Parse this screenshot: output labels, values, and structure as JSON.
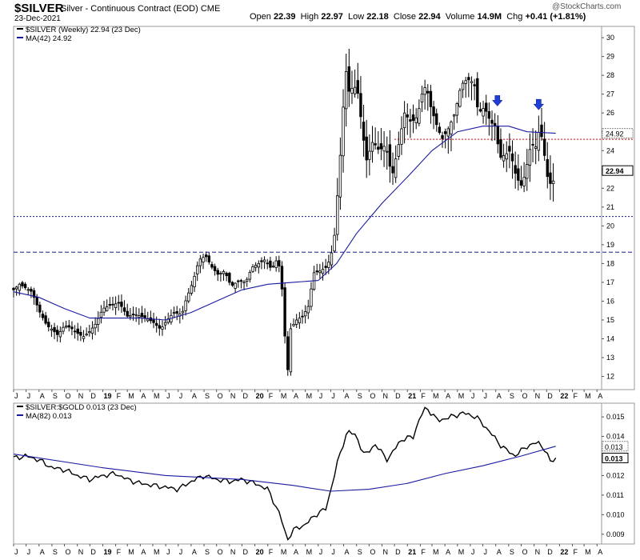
{
  "header": {
    "symbol": "$SILVER",
    "description": "Silver - Continuous Contract (EOD)",
    "exchange": "CME",
    "date": "23-Dec-2021",
    "brand": "@StockCharts.com",
    "open_label": "Open",
    "open": "22.39",
    "high_label": "High",
    "high": "22.97",
    "low_label": "Low",
    "low": "22.18",
    "close_label": "Close",
    "close": "22.94",
    "volume_label": "Volume",
    "volume": "14.9M",
    "chg_label": "Chg",
    "chg": "+0.41 (+1.81%)"
  },
  "colors": {
    "price": "#000000",
    "ma": "#1a1aa0",
    "resistance": "#cc0000",
    "support": "#1a1aa0",
    "arrow": "#1f3fd8"
  },
  "chart_data": [
    {
      "type": "candlestick",
      "legend": [
        "$SILVER (Weekly) 22.94 (23 Dec)",
        "MA(42) 24.92"
      ],
      "frequency": "weekly",
      "x_range": [
        "2018-06",
        "2022-04"
      ],
      "ylim": [
        11.3,
        30.6
      ],
      "y_ticks": [
        12,
        13,
        14,
        15,
        16,
        17,
        18,
        19,
        20,
        21,
        22,
        23,
        24,
        25,
        26,
        27,
        28,
        29,
        30
      ],
      "x_ticks": [
        "J",
        "J",
        "A",
        "S",
        "O",
        "N",
        "D",
        "19",
        "F",
        "M",
        "A",
        "M",
        "J",
        "J",
        "A",
        "S",
        "O",
        "N",
        "D",
        "20",
        "F",
        "M",
        "A",
        "M",
        "J",
        "J",
        "A",
        "S",
        "O",
        "N",
        "D",
        "21",
        "F",
        "M",
        "A",
        "M",
        "J",
        "J",
        "A",
        "S",
        "O",
        "N",
        "D",
        "22",
        "F",
        "M",
        "A"
      ],
      "price_path": [
        [
          "2018-06-01",
          16.6
        ],
        [
          "2018-06-15",
          16.9
        ],
        [
          "2018-07-15",
          16.5
        ],
        [
          "2018-08-01",
          15.5
        ],
        [
          "2018-08-20",
          14.7
        ],
        [
          "2018-09-01",
          14.5
        ],
        [
          "2018-09-15",
          14.2
        ],
        [
          "2018-10-01",
          14.7
        ],
        [
          "2018-10-15",
          14.6
        ],
        [
          "2018-11-01",
          14.3
        ],
        [
          "2018-11-15",
          14.1
        ],
        [
          "2018-12-01",
          14.4
        ],
        [
          "2018-12-15",
          14.8
        ],
        [
          "2019-01-01",
          15.6
        ],
        [
          "2019-01-20",
          15.8
        ],
        [
          "2019-02-10",
          15.9
        ],
        [
          "2019-03-01",
          15.2
        ],
        [
          "2019-03-20",
          15.3
        ],
        [
          "2019-04-15",
          15.1
        ],
        [
          "2019-05-01",
          14.9
        ],
        [
          "2019-05-20",
          14.5
        ],
        [
          "2019-06-01",
          14.9
        ],
        [
          "2019-06-20",
          15.4
        ],
        [
          "2019-07-10",
          15.3
        ],
        [
          "2019-07-20",
          16.1
        ],
        [
          "2019-08-05",
          17.0
        ],
        [
          "2019-08-20",
          18.2
        ],
        [
          "2019-09-05",
          18.4
        ],
        [
          "2019-09-20",
          17.8
        ],
        [
          "2019-10-05",
          17.4
        ],
        [
          "2019-10-20",
          17.6
        ],
        [
          "2019-11-05",
          16.8
        ],
        [
          "2019-11-25",
          17.1
        ],
        [
          "2019-12-10",
          17.0
        ],
        [
          "2019-12-25",
          17.8
        ],
        [
          "2020-01-10",
          18.0
        ],
        [
          "2020-01-25",
          18.2
        ],
        [
          "2020-02-10",
          17.7
        ],
        [
          "2020-02-25",
          18.3
        ],
        [
          "2020-03-05",
          17.0
        ],
        [
          "2020-03-12",
          14.5
        ],
        [
          "2020-03-19",
          12.0
        ],
        [
          "2020-03-26",
          14.5
        ],
        [
          "2020-04-10",
          15.0
        ],
        [
          "2020-04-25",
          15.2
        ],
        [
          "2020-05-10",
          15.8
        ],
        [
          "2020-05-20",
          17.5
        ],
        [
          "2020-06-05",
          17.6
        ],
        [
          "2020-06-20",
          17.8
        ],
        [
          "2020-07-01",
          18.3
        ],
        [
          "2020-07-10",
          19.5
        ],
        [
          "2020-07-20",
          22.5
        ],
        [
          "2020-07-28",
          25.0
        ],
        [
          "2020-08-05",
          28.5
        ],
        [
          "2020-08-15",
          27.0
        ],
        [
          "2020-08-25",
          27.5
        ],
        [
          "2020-09-05",
          27.0
        ],
        [
          "2020-09-15",
          25.0
        ],
        [
          "2020-09-25",
          23.5
        ],
        [
          "2020-10-10",
          24.5
        ],
        [
          "2020-10-25",
          24.0
        ],
        [
          "2020-11-10",
          24.3
        ],
        [
          "2020-11-25",
          22.6
        ],
        [
          "2020-12-10",
          24.2
        ],
        [
          "2020-12-25",
          26.0
        ],
        [
          "2021-01-10",
          25.5
        ],
        [
          "2021-01-25",
          25.8
        ],
        [
          "2021-02-05",
          27.0
        ],
        [
          "2021-02-15",
          27.5
        ],
        [
          "2021-02-25",
          26.4
        ],
        [
          "2021-03-10",
          25.5
        ],
        [
          "2021-03-25",
          24.6
        ],
        [
          "2021-04-10",
          25.2
        ],
        [
          "2021-04-25",
          26.0
        ],
        [
          "2021-05-10",
          27.5
        ],
        [
          "2021-05-25",
          27.8
        ],
        [
          "2021-06-10",
          27.6
        ],
        [
          "2021-06-20",
          26.0
        ],
        [
          "2021-07-05",
          26.3
        ],
        [
          "2021-07-20",
          25.5
        ],
        [
          "2021-08-01",
          25.3
        ],
        [
          "2021-08-10",
          23.6
        ],
        [
          "2021-08-25",
          23.8
        ],
        [
          "2021-09-05",
          24.0
        ],
        [
          "2021-09-15",
          22.9
        ],
        [
          "2021-09-30",
          22.1
        ],
        [
          "2021-10-10",
          22.7
        ],
        [
          "2021-10-25",
          24.4
        ],
        [
          "2021-11-05",
          24.2
        ],
        [
          "2021-11-15",
          25.3
        ],
        [
          "2021-11-25",
          23.9
        ],
        [
          "2021-12-05",
          22.3
        ],
        [
          "2021-12-15",
          22.2
        ],
        [
          "2021-12-23",
          22.94
        ]
      ],
      "ma_path": [
        [
          "2018-06-01",
          16.5
        ],
        [
          "2018-08-01",
          16.2
        ],
        [
          "2018-10-01",
          15.6
        ],
        [
          "2018-12-01",
          15.1
        ],
        [
          "2019-02-01",
          15.1
        ],
        [
          "2019-04-01",
          15.1
        ],
        [
          "2019-06-01",
          15.0
        ],
        [
          "2019-08-01",
          15.4
        ],
        [
          "2019-10-01",
          16.0
        ],
        [
          "2019-12-01",
          16.6
        ],
        [
          "2020-02-01",
          16.9
        ],
        [
          "2020-04-01",
          17.0
        ],
        [
          "2020-06-01",
          17.1
        ],
        [
          "2020-07-15",
          18.0
        ],
        [
          "2020-09-01",
          19.6
        ],
        [
          "2020-11-01",
          21.2
        ],
        [
          "2021-01-01",
          22.6
        ],
        [
          "2021-03-01",
          24.0
        ],
        [
          "2021-05-01",
          25.0
        ],
        [
          "2021-07-01",
          25.3
        ],
        [
          "2021-09-01",
          25.3
        ],
        [
          "2021-10-15",
          25.0
        ],
        [
          "2021-12-23",
          24.92
        ]
      ],
      "horizontal_lines": [
        {
          "y": 24.6,
          "style": "dotted",
          "color": "#cc0000",
          "from": "2020-12-01"
        },
        {
          "y": 20.5,
          "style": "dotted",
          "color": "#1a1aa0",
          "from": "2018-06-01"
        },
        {
          "y": 18.6,
          "style": "dashed",
          "color": "#1a1aa0",
          "from": "2018-06-01"
        }
      ],
      "arrows": [
        {
          "x": "2021-08-05",
          "y": 26.5
        },
        {
          "x": "2021-11-12",
          "y": 26.3
        }
      ],
      "last_value_labels": [
        {
          "text": "24.92",
          "y": 24.92,
          "style": "dotted"
        },
        {
          "text": "22.94",
          "y": 22.94,
          "style": "bold"
        }
      ]
    },
    {
      "type": "line",
      "legend": [
        "$SILVER:$GOLD 0.013 (23 Dec)",
        "MA(82) 0.013"
      ],
      "ylim": [
        0.0085,
        0.0157
      ],
      "y_ticks": [
        {
          "v": 0.009,
          "label": "0.009"
        },
        {
          "v": 0.01,
          "label": "0.010"
        },
        {
          "v": 0.011,
          "label": "0.011"
        },
        {
          "v": 0.012,
          "label": "0.012"
        },
        {
          "v": 0.014,
          "label": "0.014"
        },
        {
          "v": 0.015,
          "label": "0.015"
        }
      ],
      "ratio_path": [
        [
          "2018-06-01",
          0.0129
        ],
        [
          "2018-07-01",
          0.013
        ],
        [
          "2018-08-01",
          0.0128
        ],
        [
          "2018-09-01",
          0.0124
        ],
        [
          "2018-10-01",
          0.0123
        ],
        [
          "2018-11-01",
          0.012
        ],
        [
          "2018-12-01",
          0.0118
        ],
        [
          "2019-01-01",
          0.012
        ],
        [
          "2019-02-01",
          0.0121
        ],
        [
          "2019-03-01",
          0.0118
        ],
        [
          "2019-04-01",
          0.0116
        ],
        [
          "2019-05-01",
          0.0115
        ],
        [
          "2019-06-01",
          0.0114
        ],
        [
          "2019-07-01",
          0.0113
        ],
        [
          "2019-08-01",
          0.0117
        ],
        [
          "2019-09-01",
          0.012
        ],
        [
          "2019-10-01",
          0.0118
        ],
        [
          "2019-11-01",
          0.0117
        ],
        [
          "2019-12-01",
          0.0118
        ],
        [
          "2020-01-01",
          0.0116
        ],
        [
          "2020-02-01",
          0.0113
        ],
        [
          "2020-03-01",
          0.01
        ],
        [
          "2020-03-19",
          0.0087
        ],
        [
          "2020-04-01",
          0.0092
        ],
        [
          "2020-05-01",
          0.0095
        ],
        [
          "2020-06-01",
          0.0101
        ],
        [
          "2020-06-20",
          0.0103
        ],
        [
          "2020-07-15",
          0.0125
        ],
        [
          "2020-08-10",
          0.0143
        ],
        [
          "2020-09-01",
          0.014
        ],
        [
          "2020-09-20",
          0.013
        ],
        [
          "2020-10-15",
          0.0136
        ],
        [
          "2020-11-15",
          0.0128
        ],
        [
          "2020-12-15",
          0.0138
        ],
        [
          "2021-01-15",
          0.014
        ],
        [
          "2021-02-01",
          0.015
        ],
        [
          "2021-02-15",
          0.0155
        ],
        [
          "2021-03-15",
          0.0148
        ],
        [
          "2021-04-15",
          0.015
        ],
        [
          "2021-05-15",
          0.0152
        ],
        [
          "2021-06-15",
          0.015
        ],
        [
          "2021-07-15",
          0.0143
        ],
        [
          "2021-08-15",
          0.0135
        ],
        [
          "2021-09-15",
          0.013
        ],
        [
          "2021-10-15",
          0.0135
        ],
        [
          "2021-11-10",
          0.0137
        ],
        [
          "2021-11-25",
          0.0134
        ],
        [
          "2021-12-10",
          0.0127
        ],
        [
          "2021-12-23",
          0.0129
        ]
      ],
      "ma_path": [
        [
          "2018-06-01",
          0.0131
        ],
        [
          "2019-01-01",
          0.0124
        ],
        [
          "2019-06-01",
          0.012
        ],
        [
          "2019-12-01",
          0.0118
        ],
        [
          "2020-04-01",
          0.0115
        ],
        [
          "2020-07-01",
          0.0112
        ],
        [
          "2020-10-01",
          0.0113
        ],
        [
          "2021-01-01",
          0.0116
        ],
        [
          "2021-04-01",
          0.0121
        ],
        [
          "2021-07-01",
          0.0125
        ],
        [
          "2021-10-01",
          0.013
        ],
        [
          "2021-12-23",
          0.0135
        ]
      ],
      "last_value_labels": [
        {
          "text": "0.013",
          "y": 0.0135,
          "style": "dotted"
        },
        {
          "text": "0.013",
          "y": 0.0129,
          "style": "bold"
        }
      ]
    }
  ]
}
